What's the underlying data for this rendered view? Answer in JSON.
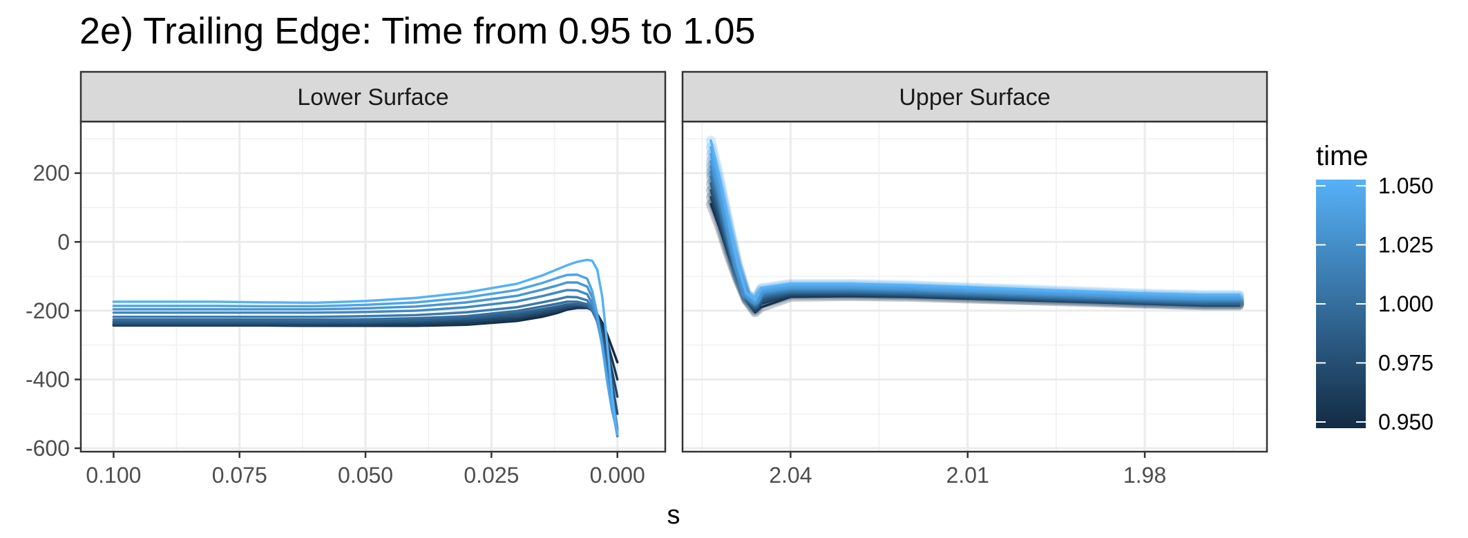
{
  "chart_data": {
    "type": "line",
    "title": "2e) Trailing Edge: Time from 0.95 to 1.05",
    "xlabel": "s",
    "ylabel": "",
    "ylim": [
      -610,
      350
    ],
    "yticks": [
      200,
      0,
      -200,
      -400,
      -600
    ],
    "ytick_labels": [
      "200",
      "0",
      "-200",
      "-400",
      "-600"
    ],
    "grid": true,
    "legend": {
      "title": "time",
      "position": "right",
      "type": "colorbar",
      "range": [
        0.95,
        1.05
      ],
      "breaks": [
        1.05,
        1.025,
        1.0,
        0.975,
        0.95
      ],
      "labels": [
        "1.050",
        "1.025",
        "1.000",
        "0.975",
        "0.950"
      ],
      "color_low": "#132B43",
      "color_high": "#56B1F7"
    },
    "panels": [
      {
        "strip": "Lower Surface",
        "xlim": [
          0.1065,
          -0.0095
        ],
        "x_reversed": true,
        "xticks": [
          0.1,
          0.075,
          0.05,
          0.025,
          0.0
        ],
        "xtick_labels": [
          "0.100",
          "0.075",
          "0.050",
          "0.025",
          "0.000"
        ],
        "x": [
          0.1,
          0.09,
          0.08,
          0.07,
          0.06,
          0.05,
          0.04,
          0.03,
          0.02,
          0.015,
          0.012,
          0.01,
          0.008,
          0.006,
          0.005,
          0.004,
          0.003,
          0.002,
          0.001,
          0.0
        ],
        "series": [
          {
            "time": 0.95,
            "values": [
              -243,
              -243,
              -243,
              -243,
              -244,
              -244,
              -244,
              -241,
              -230,
              -218,
              -207,
              -197,
              -192,
              -192,
              -198,
              -210,
              -235,
              -270,
              -310,
              -350
            ]
          },
          {
            "time": 0.96,
            "values": [
              -243,
              -243,
              -243,
              -243,
              -244,
              -243,
              -242,
              -238,
              -226,
              -213,
              -203,
              -194,
              -189,
              -190,
              -198,
              -212,
              -242,
              -290,
              -345,
              -400
            ]
          },
          {
            "time": 0.97,
            "values": [
              -240,
              -240,
              -240,
              -240,
              -240,
              -239,
              -237,
              -232,
              -220,
              -208,
              -199,
              -190,
              -186,
              -189,
              -200,
              -218,
              -254,
              -312,
              -380,
              -450
            ]
          },
          {
            "time": 0.98,
            "values": [
              -236,
              -236,
              -236,
              -236,
              -236,
              -235,
              -232,
              -226,
              -213,
              -201,
              -193,
              -186,
              -183,
              -187,
              -200,
              -222,
              -264,
              -332,
              -415,
              -500
            ]
          },
          {
            "time": 0.99,
            "values": [
              -232,
              -232,
              -232,
              -232,
              -232,
              -231,
              -228,
              -222,
              -208,
              -196,
              -188,
              -182,
              -181,
              -186,
              -201,
              -227,
              -275,
              -352,
              -448,
              -545
            ]
          },
          {
            "time": 1.0,
            "values": [
              -226,
              -226,
              -226,
              -226,
              -226,
              -225,
              -222,
              -216,
              -201,
              -188,
              -180,
              -174,
              -174,
              -181,
              -200,
              -232,
              -290,
              -372,
              -470,
              -560
            ]
          },
          {
            "time": 1.01,
            "values": [
              -218,
              -218,
              -218,
              -218,
              -218,
              -216,
              -213,
              -205,
              -190,
              -176,
              -167,
              -160,
              -161,
              -170,
              -193,
              -232,
              -298,
              -385,
              -480,
              -565
            ]
          },
          {
            "time": 1.02,
            "values": [
              -206,
              -206,
              -206,
              -206,
              -206,
              -204,
              -200,
              -190,
              -173,
              -158,
              -147,
              -140,
              -141,
              -152,
              -180,
              -228,
              -302,
              -395,
              -487,
              -560
            ]
          },
          {
            "time": 1.03,
            "values": [
              -196,
              -196,
              -196,
              -196,
              -196,
              -193,
              -188,
              -176,
              -157,
              -139,
              -127,
              -118,
              -118,
              -130,
              -162,
              -220,
              -304,
              -402,
              -492,
              -555
            ]
          },
          {
            "time": 1.04,
            "values": [
              -186,
              -186,
              -186,
              -187,
              -187,
              -183,
              -176,
              -162,
              -140,
              -120,
              -105,
              -96,
              -95,
              -107,
              -143,
              -210,
              -302,
              -408,
              -495,
              -550
            ]
          },
          {
            "time": 1.05,
            "values": [
              -174,
              -174,
              -174,
              -176,
              -177,
              -172,
              -163,
              -147,
              -122,
              -98,
              -80,
              -68,
              -58,
              -52,
              -55,
              -80,
              -160,
              -300,
              -450,
              -560
            ]
          }
        ]
      },
      {
        "strip": "Upper Surface",
        "xlim": [
          2.0583,
          1.9593
        ],
        "x_reversed": true,
        "xticks": [
          2.04,
          2.01,
          1.98
        ],
        "xtick_labels": [
          "2.04",
          "2.01",
          "1.98"
        ],
        "x": [
          2.0535,
          2.052,
          2.0505,
          2.049,
          2.0475,
          2.046,
          2.045,
          2.04,
          2.03,
          2.02,
          2.01,
          2.0,
          1.99,
          1.98,
          1.97,
          1.964
        ],
        "series": [
          {
            "time": 0.95,
            "values": [
              110,
              40,
              -40,
              -110,
              -170,
              -205,
              -190,
              -160,
              -158,
              -160,
              -165,
              -170,
              -175,
              -180,
              -185,
              -185
            ]
          },
          {
            "time": 0.96,
            "values": [
              130,
              55,
              -30,
              -105,
              -168,
              -200,
              -180,
              -155,
              -154,
              -156,
              -162,
              -168,
              -172,
              -178,
              -182,
              -182
            ]
          },
          {
            "time": 0.97,
            "values": [
              150,
              70,
              -20,
              -100,
              -165,
              -195,
              -172,
              -150,
              -150,
              -153,
              -158,
              -164,
              -169,
              -175,
              -180,
              -180
            ]
          },
          {
            "time": 0.98,
            "values": [
              170,
              85,
              -10,
              -95,
              -162,
              -190,
              -165,
              -147,
              -146,
              -150,
              -155,
              -160,
              -166,
              -172,
              -177,
              -177
            ]
          },
          {
            "time": 0.99,
            "values": [
              190,
              100,
              0,
              -90,
              -160,
              -186,
              -160,
              -144,
              -143,
              -147,
              -152,
              -158,
              -164,
              -170,
              -175,
              -175
            ]
          },
          {
            "time": 1.0,
            "values": [
              205,
              115,
              10,
              -85,
              -158,
              -182,
              -155,
              -140,
              -140,
              -144,
              -150,
              -156,
              -162,
              -168,
              -172,
              -172
            ]
          },
          {
            "time": 1.01,
            "values": [
              220,
              128,
              20,
              -80,
              -156,
              -178,
              -150,
              -137,
              -137,
              -141,
              -147,
              -153,
              -159,
              -165,
              -170,
              -170
            ]
          },
          {
            "time": 1.02,
            "values": [
              235,
              140,
              30,
              -75,
              -154,
              -175,
              -146,
              -134,
              -134,
              -138,
              -144,
              -150,
              -156,
              -162,
              -167,
              -167
            ]
          },
          {
            "time": 1.03,
            "values": [
              255,
              155,
              40,
              -70,
              -152,
              -172,
              -142,
              -130,
              -130,
              -134,
              -140,
              -146,
              -152,
              -158,
              -162,
              -162
            ]
          },
          {
            "time": 1.04,
            "values": [
              275,
              170,
              50,
              -65,
              -150,
              -170,
              -138,
              -126,
              -126,
              -130,
              -136,
              -142,
              -148,
              -154,
              -158,
              -158
            ]
          },
          {
            "time": 1.05,
            "values": [
              295,
              185,
              60,
              -60,
              -148,
              -168,
              -134,
              -122,
              -122,
              -126,
              -132,
              -138,
              -144,
              -150,
              -154,
              -154
            ]
          }
        ]
      }
    ]
  }
}
